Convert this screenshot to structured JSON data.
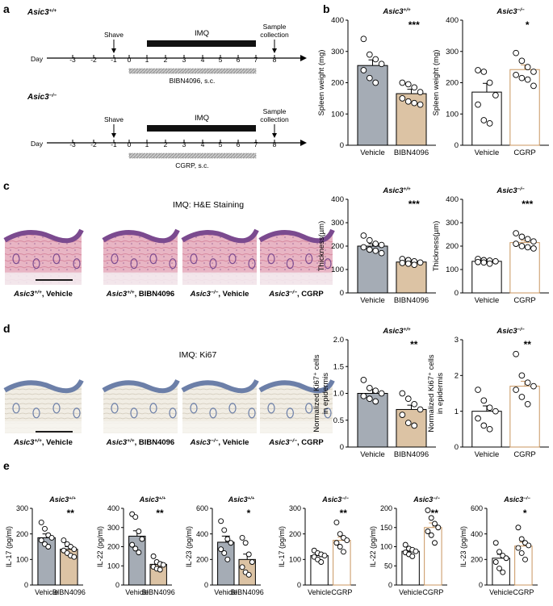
{
  "panel_labels": {
    "a": "a",
    "b": "b",
    "c": "c",
    "d": "d",
    "e": "e"
  },
  "genotypes": {
    "wt": "Asic3",
    "wt_sup": "+/+",
    "ko": "Asic3",
    "ko_sup": "−/−"
  },
  "schematic": {
    "day_label": "Day",
    "days": [
      "-3",
      "-2",
      "-1",
      "0",
      "1",
      "2",
      "3",
      "4",
      "5",
      "6",
      "7",
      "8"
    ],
    "shave_label": "Shave",
    "imq_label": "IMQ",
    "sample_label_line1": "Sample",
    "sample_label_line2": "collection",
    "treatment_top": "BIBN4096, s.c.",
    "treatment_bottom": "CGRP, s.c."
  },
  "histology": {
    "he_title": "IMQ: H&E Staining",
    "ki67_title": "IMQ: Ki67",
    "condition_suffixes": [
      ", Vehicle",
      ", BIBN4096",
      ", Vehicle",
      ", CGRP"
    ]
  },
  "colors": {
    "vehicle_fill": "#a5acb5",
    "bibn_fill": "#dcc3a4",
    "cgrp_stroke": "#c8955f",
    "white_fill": "#ffffff"
  },
  "chart_data": [
    {
      "id": "b1",
      "type": "bar",
      "title": "Asic3+/+",
      "ylabel": "Spleen weight (mg)",
      "categories": [
        "Vehicle",
        "BIBN4096"
      ],
      "values": [
        255,
        165
      ],
      "errors": [
        18,
        14
      ],
      "ylim": [
        0,
        400
      ],
      "yticks": [
        0,
        100,
        200,
        300,
        400
      ],
      "significance": "***",
      "points": [
        [
          340,
          290,
          275,
          260,
          240,
          215,
          200
        ],
        [
          200,
          195,
          185,
          170,
          150,
          140,
          135,
          130
        ]
      ]
    },
    {
      "id": "b2",
      "type": "bar",
      "title": "Asic3−/−",
      "ylabel": "Spleen weight (mg)",
      "categories": [
        "Vehicle",
        "CGRP"
      ],
      "values": [
        170,
        242
      ],
      "errors": [
        28,
        15
      ],
      "ylim": [
        0,
        400
      ],
      "yticks": [
        0,
        100,
        200,
        300,
        400
      ],
      "significance": "*",
      "points": [
        [
          240,
          235,
          200,
          160,
          130,
          80,
          70
        ],
        [
          295,
          270,
          250,
          235,
          225,
          215,
          210,
          190
        ]
      ]
    },
    {
      "id": "c1",
      "type": "bar",
      "title": "Asic3+/+",
      "ylabel": "Thickness(µm)",
      "categories": [
        "Vehicle",
        "BIBN4096"
      ],
      "values": [
        200,
        132
      ],
      "errors": [
        10,
        5
      ],
      "ylim": [
        0,
        400
      ],
      "yticks": [
        0,
        100,
        200,
        300,
        400
      ],
      "significance": "***",
      "points": [
        [
          245,
          225,
          210,
          205,
          195,
          185,
          180,
          170
        ],
        [
          145,
          140,
          135,
          130,
          128,
          125,
          120
        ]
      ]
    },
    {
      "id": "c2",
      "type": "bar",
      "title": "Asic3−/−",
      "ylabel": "Thickness(µm)",
      "categories": [
        "Vehicle",
        "CGRP"
      ],
      "values": [
        135,
        215
      ],
      "errors": [
        5,
        9
      ],
      "ylim": [
        0,
        400
      ],
      "yticks": [
        0,
        100,
        200,
        300,
        400
      ],
      "significance": "***",
      "points": [
        [
          145,
          140,
          138,
          135,
          132,
          130,
          125
        ],
        [
          255,
          240,
          230,
          220,
          210,
          200,
          195,
          190
        ]
      ]
    },
    {
      "id": "d1",
      "type": "bar",
      "title": "Asic3+/+",
      "ylabel": "Normalized Ki67⁺ cells in epidermis",
      "categories": [
        "Vehicle",
        "BIBN4096"
      ],
      "values": [
        1.0,
        0.7
      ],
      "errors": [
        0.07,
        0.08
      ],
      "ylim": [
        0,
        2.0
      ],
      "yticks": [
        0,
        0.5,
        1.0,
        1.5,
        2.0
      ],
      "significance": "**",
      "points": [
        [
          1.25,
          1.1,
          1.05,
          1.0,
          0.95,
          0.9,
          0.85
        ],
        [
          1.0,
          0.9,
          0.8,
          0.7,
          0.6,
          0.45,
          0.4
        ]
      ]
    },
    {
      "id": "d2",
      "type": "bar",
      "title": "Asic3−/−",
      "ylabel": "Normalized Ki67⁺ cells in epidermis",
      "categories": [
        "Vehicle",
        "CGRP"
      ],
      "values": [
        1.0,
        1.7
      ],
      "errors": [
        0.15,
        0.14
      ],
      "ylim": [
        0,
        3
      ],
      "yticks": [
        0,
        1,
        2,
        3
      ],
      "significance": "**",
      "points": [
        [
          1.6,
          1.3,
          1.1,
          1.0,
          0.8,
          0.6,
          0.5
        ],
        [
          2.6,
          2.0,
          1.8,
          1.7,
          1.6,
          1.4,
          1.2
        ]
      ]
    },
    {
      "id": "e1",
      "type": "bar",
      "title": "Asic3+/+",
      "ylabel": "IL-17 (pg/ml)",
      "categories": [
        "Vehicle",
        "BIBN4096"
      ],
      "values": [
        185,
        140
      ],
      "errors": [
        15,
        10
      ],
      "ylim": [
        0,
        300
      ],
      "yticks": [
        0,
        100,
        200,
        300
      ],
      "significance": "**",
      "points": [
        [
          245,
          220,
          195,
          185,
          175,
          160,
          150
        ],
        [
          175,
          160,
          150,
          140,
          135,
          125,
          115,
          110
        ]
      ]
    },
    {
      "id": "e2",
      "type": "bar",
      "title": "Asic3+/+",
      "ylabel": "IL-22 (pg/ml)",
      "categories": [
        "Vehicle",
        "BIBN4096"
      ],
      "values": [
        255,
        108
      ],
      "errors": [
        28,
        12
      ],
      "ylim": [
        0,
        400
      ],
      "yticks": [
        0,
        100,
        200,
        300,
        400
      ],
      "significance": "**",
      "points": [
        [
          370,
          355,
          280,
          240,
          210,
          190,
          170
        ],
        [
          150,
          120,
          110,
          105,
          95,
          85,
          80
        ]
      ]
    },
    {
      "id": "e3",
      "type": "bar",
      "title": "Asic3+/+",
      "ylabel": "IL-23 (pg/ml)",
      "categories": [
        "Vehicle",
        "BIBN4096"
      ],
      "values": [
        335,
        200
      ],
      "errors": [
        48,
        42
      ],
      "ylim": [
        0,
        600
      ],
      "yticks": [
        0,
        200,
        400,
        600
      ],
      "significance": "*",
      "points": [
        [
          500,
          430,
          360,
          330,
          280,
          250,
          200
        ],
        [
          370,
          330,
          240,
          180,
          140,
          100,
          80
        ]
      ]
    },
    {
      "id": "e4",
      "type": "bar",
      "title": "Asic3−/−",
      "ylabel": "IL-17 (pg/ml)",
      "categories": [
        "Vehicle",
        "CGRP"
      ],
      "values": [
        115,
        175
      ],
      "errors": [
        8,
        12
      ],
      "ylim": [
        0,
        300
      ],
      "yticks": [
        0,
        100,
        200,
        300
      ],
      "significance": "**",
      "points": [
        [
          135,
          125,
          120,
          115,
          110,
          100,
          90
        ],
        [
          245,
          200,
          185,
          175,
          165,
          150,
          130
        ]
      ]
    },
    {
      "id": "e5",
      "type": "bar",
      "title": "Asic3−/−",
      "ylabel": "IL-22 (pg/ml)",
      "categories": [
        "Vehicle",
        "CGRP"
      ],
      "values": [
        88,
        150
      ],
      "errors": [
        5,
        12
      ],
      "ylim": [
        0,
        200
      ],
      "yticks": [
        0,
        50,
        100,
        150,
        200
      ],
      "significance": "**",
      "points": [
        [
          105,
          95,
          92,
          88,
          85,
          80,
          75
        ],
        [
          195,
          175,
          160,
          150,
          140,
          130,
          110
        ]
      ]
    },
    {
      "id": "e6",
      "type": "bar",
      "title": "Asic3−/−",
      "ylabel": "IL-23 (pg/ml)",
      "categories": [
        "Vehicle",
        "CGRP"
      ],
      "values": [
        210,
        305
      ],
      "errors": [
        30,
        30
      ],
      "ylim": [
        0,
        600
      ],
      "yticks": [
        0,
        200,
        400,
        600
      ],
      "significance": "*",
      "points": [
        [
          330,
          260,
          230,
          210,
          180,
          130,
          100
        ],
        [
          450,
          360,
          330,
          310,
          290,
          250,
          200
        ]
      ]
    }
  ]
}
